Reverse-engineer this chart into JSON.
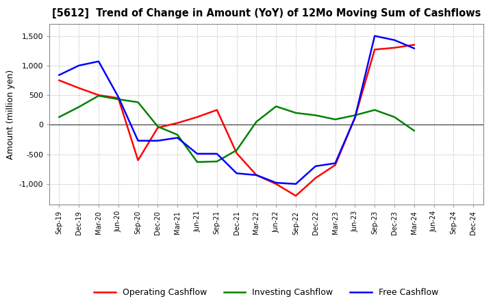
{
  "title": "[5612]  Trend of Change in Amount (YoY) of 12Mo Moving Sum of Cashflows",
  "ylabel": "Amount (million yen)",
  "x_labels": [
    "Sep-19",
    "Dec-19",
    "Mar-20",
    "Jun-20",
    "Sep-20",
    "Dec-20",
    "Mar-21",
    "Jun-21",
    "Sep-21",
    "Dec-21",
    "Mar-22",
    "Jun-22",
    "Sep-22",
    "Dec-22",
    "Mar-23",
    "Jun-23",
    "Sep-23",
    "Dec-23",
    "Mar-24",
    "Jun-24",
    "Sep-24",
    "Dec-24"
  ],
  "operating": [
    750,
    620,
    500,
    450,
    -600,
    -50,
    30,
    130,
    250,
    -480,
    -850,
    -1000,
    -1200,
    -900,
    -680,
    120,
    1270,
    1300,
    1350,
    null,
    null,
    null
  ],
  "investing": [
    130,
    300,
    490,
    430,
    380,
    -30,
    -170,
    -630,
    -620,
    -430,
    50,
    310,
    200,
    160,
    90,
    160,
    250,
    130,
    -100,
    null,
    null,
    null
  ],
  "free": [
    840,
    1000,
    1070,
    470,
    -270,
    -270,
    -220,
    -490,
    -490,
    -820,
    -850,
    -980,
    -1000,
    -700,
    -650,
    120,
    1500,
    1430,
    1290,
    null,
    null,
    null
  ],
  "operating_color": "#ff0000",
  "investing_color": "#008000",
  "free_color": "#0000ff",
  "ylim": [
    -1350,
    1700
  ],
  "yticks": [
    -1000,
    -500,
    0,
    500,
    1000,
    1500
  ],
  "background_color": "#ffffff",
  "grid_color": "#aaaaaa"
}
